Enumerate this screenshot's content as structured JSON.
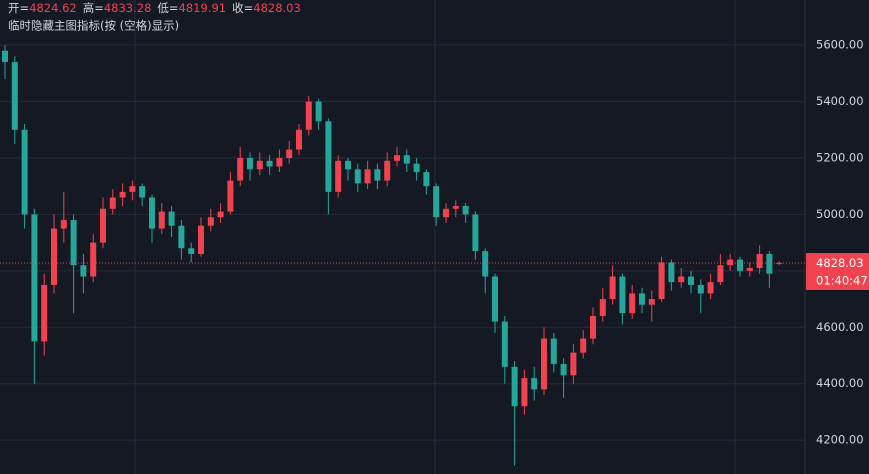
{
  "chart_data": {
    "type": "candlestick",
    "header_labels": [
      "开=",
      "高=",
      "低=",
      "收="
    ],
    "subtitle": "临时隐藏主图指标(按 (空格)显示)",
    "countdown": "01:40:47",
    "up_color": "#f0434f",
    "down_color": "#26a69a",
    "ylim": [
      4080,
      5760
    ],
    "yticks": [
      {
        "value": 4200,
        "label": "4200.00"
      },
      {
        "value": 4400,
        "label": "4400.00"
      },
      {
        "value": 4600,
        "label": "4600.00"
      },
      {
        "value": 4800,
        "label": "4800.00"
      },
      {
        "value": 5000,
        "label": "5000.00"
      },
      {
        "value": 5200,
        "label": "5200.00"
      },
      {
        "value": 5400,
        "label": "5400.00"
      },
      {
        "value": 5600,
        "label": "5600.00"
      }
    ],
    "grid": true,
    "open": [
      5580,
      5540,
      5300,
      5000,
      4550,
      4750,
      4950,
      4980,
      4820,
      4780,
      4900,
      5020,
      5060,
      5080,
      5100,
      5060,
      4950,
      5010,
      4960,
      4880,
      4860,
      4960,
      4990,
      5010,
      5120,
      5200,
      5160,
      5190,
      5170,
      5200,
      5230,
      5300,
      5400,
      5330,
      5080,
      5190,
      5160,
      5110,
      5160,
      5120,
      5190,
      5210,
      5180,
      5150,
      5100,
      4990,
      5020,
      5030,
      5000,
      4870,
      4780,
      4620,
      4460,
      4320,
      4420,
      4380,
      4560,
      4470,
      4430,
      4510,
      4560,
      4640,
      4700,
      4780,
      4650,
      4720,
      4680,
      4700,
      4830,
      4760,
      4780,
      4750,
      4720,
      4760,
      4820,
      4840,
      4800,
      4810,
      4860,
      4824.62
    ],
    "high": [
      5600,
      5560,
      5320,
      5020,
      4790,
      5000,
      5080,
      5000,
      4860,
      4930,
      5060,
      5090,
      5110,
      5120,
      5110,
      5070,
      5040,
      5030,
      4980,
      4900,
      4990,
      5020,
      5040,
      5150,
      5240,
      5220,
      5220,
      5210,
      5230,
      5260,
      5320,
      5420,
      5410,
      5340,
      5210,
      5200,
      5180,
      5190,
      5180,
      5220,
      5240,
      5230,
      5200,
      5160,
      5110,
      5040,
      5050,
      5040,
      5010,
      4880,
      4790,
      4640,
      4480,
      4450,
      4460,
      4600,
      4580,
      4490,
      4540,
      4590,
      4670,
      4740,
      4820,
      4790,
      4750,
      4740,
      4730,
      4850,
      4840,
      4810,
      4800,
      4770,
      4790,
      4860,
      4860,
      4850,
      4830,
      4890,
      4870,
      4833.28
    ],
    "low": [
      5480,
      5250,
      4950,
      4400,
      4500,
      4720,
      4900,
      4650,
      4720,
      4760,
      4880,
      5000,
      5030,
      5050,
      5030,
      4900,
      4930,
      4920,
      4840,
      4830,
      4850,
      4940,
      4970,
      5000,
      5100,
      5120,
      5140,
      5140,
      5150,
      5180,
      5210,
      5280,
      5300,
      5000,
      5060,
      5120,
      5080,
      5090,
      5090,
      5100,
      5170,
      5150,
      5120,
      5070,
      4960,
      4970,
      4990,
      4970,
      4840,
      4720,
      4580,
      4400,
      4110,
      4290,
      4340,
      4360,
      4440,
      4350,
      4400,
      4490,
      4540,
      4620,
      4680,
      4610,
      4630,
      4650,
      4620,
      4690,
      4730,
      4740,
      4720,
      4650,
      4700,
      4750,
      4800,
      4780,
      4780,
      4790,
      4740,
      4819.91
    ],
    "close": [
      5540,
      5300,
      5000,
      4550,
      4750,
      4950,
      4980,
      4820,
      4780,
      4900,
      5020,
      5060,
      5080,
      5100,
      5060,
      4950,
      5010,
      4960,
      4880,
      4860,
      4960,
      4990,
      5010,
      5120,
      5200,
      5160,
      5190,
      5170,
      5200,
      5230,
      5300,
      5400,
      5330,
      5080,
      5190,
      5160,
      5110,
      5160,
      5120,
      5190,
      5210,
      5180,
      5150,
      5100,
      4990,
      5020,
      5030,
      5000,
      4870,
      4780,
      4620,
      4460,
      4320,
      4420,
      4380,
      4560,
      4470,
      4430,
      4510,
      4560,
      4640,
      4700,
      4780,
      4650,
      4720,
      4680,
      4700,
      4830,
      4760,
      4780,
      4750,
      4720,
      4760,
      4820,
      4840,
      4800,
      4810,
      4860,
      4790,
      4828.03
    ]
  }
}
